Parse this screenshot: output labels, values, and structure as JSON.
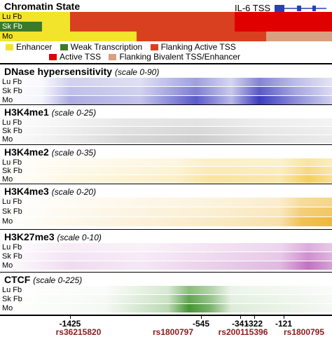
{
  "chromatin_state": {
    "title": "Chromatin State",
    "gene_label": "IL-6 TSS",
    "rows": [
      "Lu Fb",
      "Sk Fb",
      "Mo"
    ],
    "legend": [
      "Enhancer",
      "Weak Transcription",
      "Flanking Active TSS",
      "Active TSS",
      "Flanking Bivalent TSS/Enhancer"
    ]
  },
  "tracks": [
    {
      "title": "DNase hypersensitivity",
      "scale": "(scale 0-90)",
      "rows": [
        "Lu Fb",
        "Sk Fb",
        "Mo"
      ]
    },
    {
      "title": "H3K4me1",
      "scale": "(scale 0-25)",
      "rows": [
        "Lu Fb",
        "Sk Fb",
        "Mo"
      ]
    },
    {
      "title": "H3K4me2",
      "scale": "(scale 0-35)",
      "rows": [
        "Lu Fb",
        "Sk Fb",
        "Mo"
      ]
    },
    {
      "title": "H3K4me3",
      "scale": "(scale 0-20)",
      "rows": [
        "Lu Fb",
        "Sk Fb",
        "Mo"
      ]
    },
    {
      "title": "H3K27me3",
      "scale": "(scale 0-10)",
      "rows": [
        "Lu Fb",
        "Sk Fb",
        "Mo"
      ]
    },
    {
      "title": "CTCF",
      "scale": "(scale 0-225)",
      "rows": [
        "Lu Fb",
        "Sk Fb",
        "Mo"
      ]
    }
  ],
  "axis": {
    "ticks": [
      "-1425",
      "-545",
      "-341",
      "-322",
      "-121"
    ],
    "snps": [
      "rs36215820",
      "rs1800797",
      "rs200115396",
      "rs1800795"
    ]
  }
}
